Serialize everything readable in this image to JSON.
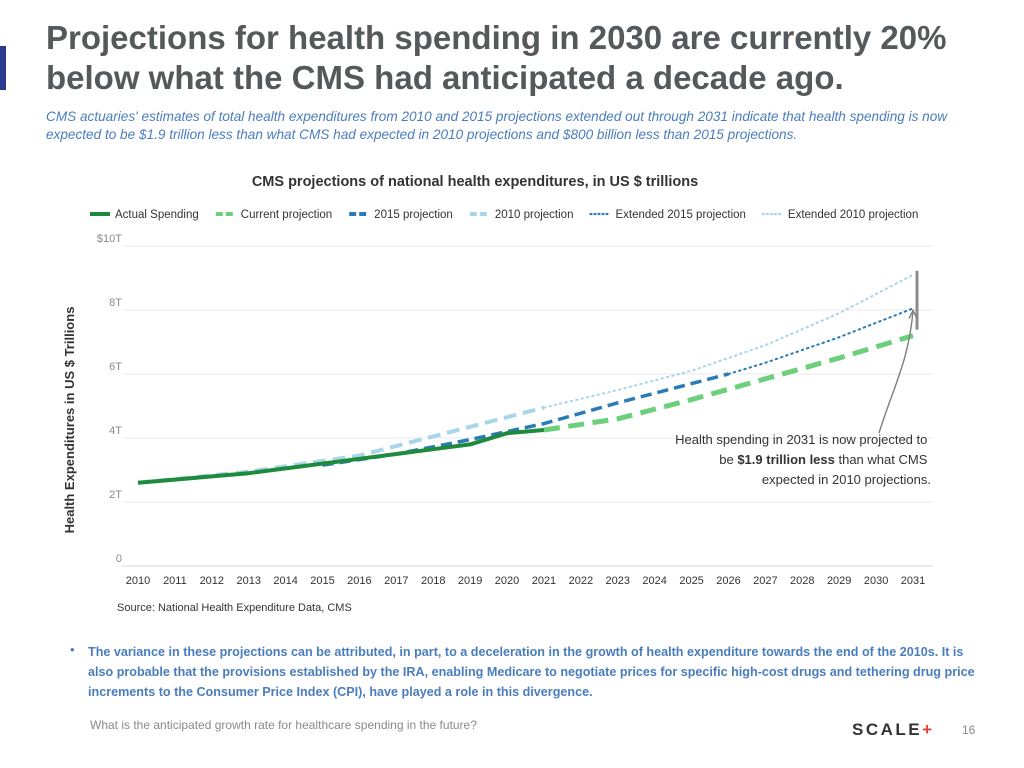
{
  "slide": {
    "title": "Projections for health spending in 2030 are currently 20% below what the CMS had anticipated a decade ago.",
    "subtitle": "CMS actuaries' estimates of total health expenditures from 2010 and 2015 projections extended out through 2031 indicate that health spending is now expected to be $1.9 trillion less than what CMS had expected in 2010 projections and $800 billion less than 2015 projections.",
    "source": "Source: National Health Expenditure Data, CMS",
    "bullet": "The variance in these projections can be attributed, in part, to a deceleration in the growth of health expenditure towards the end of the 2010s. It is also probable that the provisions established by the IRA, enabling Medicare to negotiate prices for specific high-cost drugs and tethering drug price increments to the Consumer Price Index (CPI), have played a role in this divergence.",
    "question": "What is the anticipated growth rate for healthcare spending in the future?",
    "logo_text": "SCALE",
    "logo_symbol": "+",
    "page_number": "16",
    "colors": {
      "accent_bar": "#2b3a8f",
      "title": "#55595c",
      "subtitle": "#4a7dbe",
      "logo_plus": "#e0453a"
    }
  },
  "chart_data": {
    "type": "line",
    "title": "CMS projections of national health expenditures, in US $ trillions",
    "ylabel": "Health Expenditures in  US $ Trillions",
    "xlabel": "",
    "x": [
      2010,
      2011,
      2012,
      2013,
      2014,
      2015,
      2016,
      2017,
      2018,
      2019,
      2020,
      2021,
      2022,
      2023,
      2024,
      2025,
      2026,
      2027,
      2028,
      2029,
      2030,
      2031
    ],
    "xlim": [
      2010,
      2031
    ],
    "ylim": [
      0,
      10
    ],
    "y_ticks": [
      {
        "value": 0,
        "label": "0"
      },
      {
        "value": 2,
        "label": "2T"
      },
      {
        "value": 4,
        "label": "4T"
      },
      {
        "value": 6,
        "label": "6T"
      },
      {
        "value": 8,
        "label": "8T"
      },
      {
        "value": 10,
        "label": "$10T"
      }
    ],
    "grid": true,
    "legend_position": "top",
    "series": [
      {
        "name": "2010 projection",
        "color": "#a9d5e8",
        "style": "dashed",
        "width": 4,
        "points": [
          [
            2010,
            2.6
          ],
          [
            2013,
            2.95
          ],
          [
            2016,
            3.45
          ],
          [
            2019,
            4.35
          ],
          [
            2021,
            4.95
          ]
        ]
      },
      {
        "name": "Extended 2010 projection",
        "color": "#a9d5e8",
        "style": "dotted",
        "width": 2,
        "points": [
          [
            2021,
            4.95
          ],
          [
            2023,
            5.5
          ],
          [
            2025,
            6.1
          ],
          [
            2027,
            6.9
          ],
          [
            2029,
            7.9
          ],
          [
            2031,
            9.1
          ]
        ]
      },
      {
        "name": "2015 projection",
        "color": "#2c7bb6",
        "style": "dashed",
        "width": 3.5,
        "points": [
          [
            2015,
            3.15
          ],
          [
            2017,
            3.5
          ],
          [
            2019,
            3.95
          ],
          [
            2021,
            4.45
          ],
          [
            2023,
            5.1
          ],
          [
            2025,
            5.7
          ],
          [
            2026,
            6.0
          ]
        ]
      },
      {
        "name": "Extended 2015 projection",
        "color": "#2c7bb6",
        "style": "dotted",
        "width": 2,
        "points": [
          [
            2026,
            6.0
          ],
          [
            2027,
            6.35
          ],
          [
            2029,
            7.15
          ],
          [
            2031,
            8.05
          ]
        ]
      },
      {
        "name": "Current projection",
        "color": "#6ccf7c",
        "style": "dashed",
        "width": 5,
        "points": [
          [
            2021,
            4.25
          ],
          [
            2023,
            4.6
          ],
          [
            2025,
            5.2
          ],
          [
            2027,
            5.85
          ],
          [
            2029,
            6.5
          ],
          [
            2031,
            7.2
          ]
        ]
      },
      {
        "name": "Actual Spending",
        "color": "#1e8a3e",
        "style": "solid",
        "width": 4,
        "points": [
          [
            2010,
            2.6
          ],
          [
            2011,
            2.7
          ],
          [
            2012,
            2.8
          ],
          [
            2013,
            2.9
          ],
          [
            2014,
            3.05
          ],
          [
            2015,
            3.2
          ],
          [
            2016,
            3.35
          ],
          [
            2017,
            3.5
          ],
          [
            2018,
            3.65
          ],
          [
            2019,
            3.8
          ],
          [
            2020,
            4.15
          ],
          [
            2021,
            4.25
          ]
        ]
      }
    ],
    "legend": [
      {
        "name": "Actual Spending",
        "color": "#1e8a3e",
        "style": "solid"
      },
      {
        "name": "Current projection",
        "color": "#6ccf7c",
        "style": "dashed"
      },
      {
        "name": "2015 projection",
        "color": "#2c7bb6",
        "style": "dashed"
      },
      {
        "name": "2010 projection",
        "color": "#a9d5e8",
        "style": "dashed"
      },
      {
        "name": "Extended 2015 projection",
        "color": "#2c7bb6",
        "style": "dotted"
      },
      {
        "name": "Extended 2010 projection",
        "color": "#a9d5e8",
        "style": "dotted"
      }
    ],
    "annotation": {
      "line1": "Health spending in 2031 is now projected to",
      "line2_prefix": "be ",
      "line2_bold": "$1.9 trillion less",
      "line2_suffix": " than what CMS",
      "line3": "expected in 2010 projections.",
      "gap_year": 2031,
      "gap_top": 9.1,
      "gap_bottom": 7.2,
      "arrow_target": 8.05
    }
  }
}
